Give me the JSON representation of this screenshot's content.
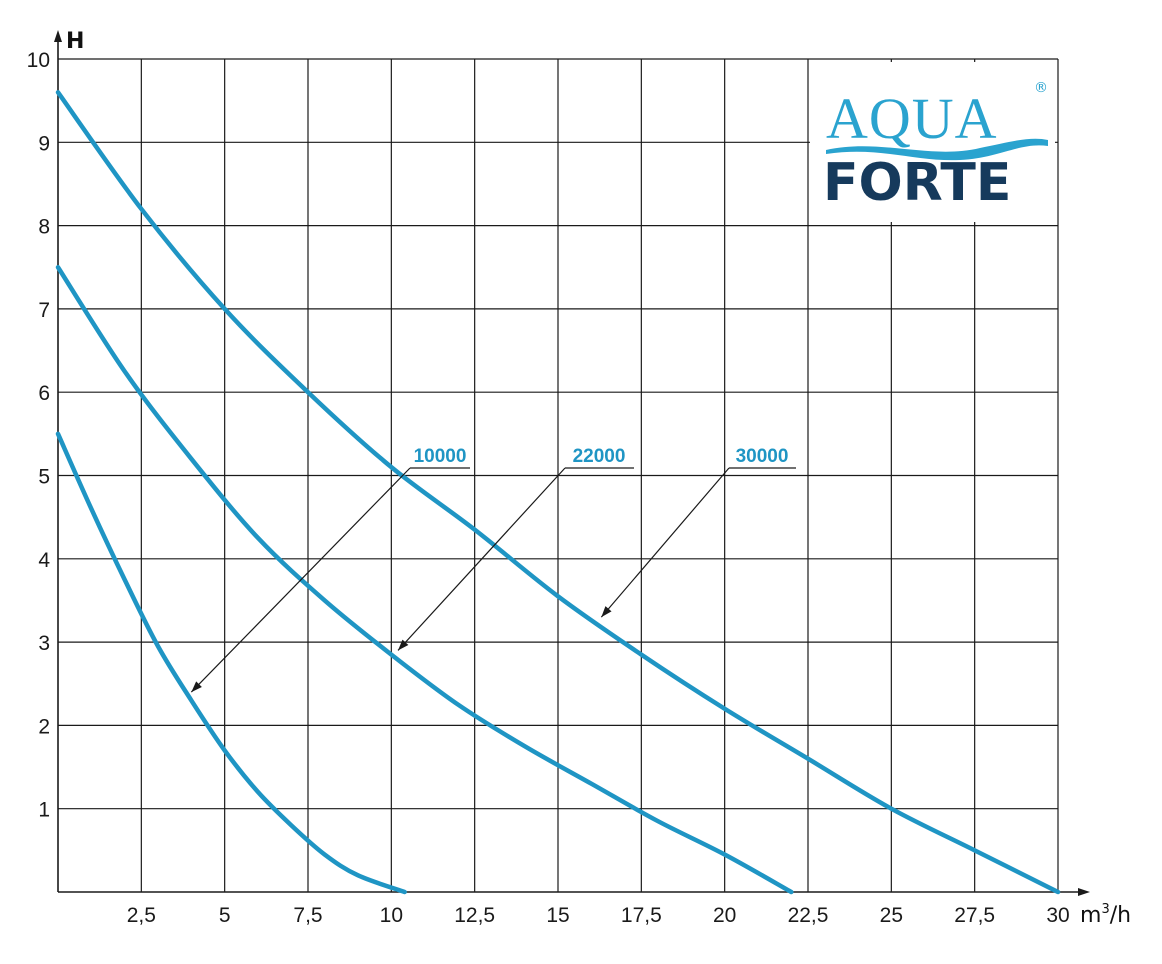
{
  "chart_data": {
    "type": "line",
    "xlabel_base": "m",
    "xlabel_sup": "3",
    "xlabel_tail": "/h",
    "ylabel": "H",
    "xlim": [
      0,
      30
    ],
    "ylim": [
      0,
      10
    ],
    "x_ticks": [
      2.5,
      5,
      7.5,
      10,
      12.5,
      15,
      17.5,
      20,
      22.5,
      25,
      27.5,
      30
    ],
    "x_tick_labels": [
      "2,5",
      "5",
      "7,5",
      "10",
      "12,5",
      "15",
      "17,5",
      "20",
      "22,5",
      "25",
      "27,5",
      "30"
    ],
    "y_ticks": [
      1,
      2,
      3,
      4,
      5,
      6,
      7,
      8,
      9,
      10
    ],
    "y_tick_labels": [
      "1",
      "2",
      "3",
      "4",
      "5",
      "6",
      "7",
      "8",
      "9",
      "10"
    ],
    "grid": true,
    "series_color": "#1f95c4",
    "series": [
      {
        "name": "10000",
        "points": [
          [
            0,
            5.5
          ],
          [
            1,
            4.6
          ],
          [
            2,
            3.75
          ],
          [
            3,
            2.95
          ],
          [
            4,
            2.3
          ],
          [
            5,
            1.7
          ],
          [
            6,
            1.2
          ],
          [
            7,
            0.8
          ],
          [
            8,
            0.45
          ],
          [
            9,
            0.2
          ],
          [
            10.4,
            0
          ]
        ]
      },
      {
        "name": "22000",
        "points": [
          [
            0,
            7.5
          ],
          [
            2,
            6.25
          ],
          [
            4,
            5.2
          ],
          [
            6,
            4.25
          ],
          [
            8,
            3.5
          ],
          [
            10,
            2.85
          ],
          [
            12,
            2.25
          ],
          [
            14,
            1.75
          ],
          [
            16,
            1.3
          ],
          [
            18,
            0.85
          ],
          [
            20,
            0.45
          ],
          [
            22,
            0
          ]
        ]
      },
      {
        "name": "30000",
        "points": [
          [
            0,
            9.6
          ],
          [
            2.5,
            8.2
          ],
          [
            5,
            7.0
          ],
          [
            7.5,
            6.0
          ],
          [
            10,
            5.1
          ],
          [
            12.5,
            4.35
          ],
          [
            15,
            3.55
          ],
          [
            17.5,
            2.85
          ],
          [
            20,
            2.2
          ],
          [
            22.5,
            1.6
          ],
          [
            25,
            1.0
          ],
          [
            27.5,
            0.5
          ],
          [
            30,
            0
          ]
        ]
      }
    ],
    "annotations": [
      {
        "text": "10000",
        "arrow_to": [
          4,
          2.4
        ]
      },
      {
        "text": "22000",
        "arrow_to": [
          10.2,
          2.9
        ]
      },
      {
        "text": "30000",
        "arrow_to": [
          16.3,
          3.3
        ]
      }
    ]
  },
  "logo": {
    "word1": "AQUA",
    "word2": "FORTE",
    "registered": "®",
    "colors": {
      "aqua": "#2aa3cf",
      "forte": "#163a5c"
    }
  }
}
